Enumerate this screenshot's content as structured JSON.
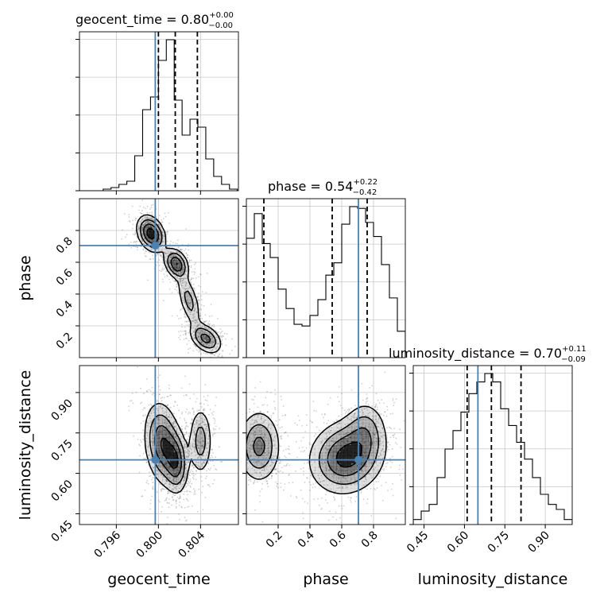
{
  "chart_data": {
    "type": "corner",
    "parameters": [
      {
        "name": "geocent_time",
        "label": "geocent_time",
        "title_prefix": "geocent_time = ",
        "median": "0.80",
        "upper": "+0.00",
        "lower": "−0.00",
        "range": [
          0.7925,
          0.8076
        ],
        "ticks": [
          0.796,
          0.8,
          0.804
        ],
        "tick_labels": [
          "0.796",
          "0.800",
          "0.804"
        ],
        "truth": 0.7997,
        "quantiles": [
          0.8,
          0.8016,
          0.8037
        ],
        "hist": {
          "edges": [
            0.7925,
            0.79325,
            0.794,
            0.79475,
            0.7955,
            0.79625,
            0.797,
            0.79775,
            0.7985,
            0.79925,
            0.8,
            0.80075,
            0.8015,
            0.80225,
            0.803,
            0.80375,
            0.8045,
            0.80525,
            0.806,
            0.80675,
            0.8075
          ],
          "counts": [
            0,
            0,
            0,
            0.01,
            0.02,
            0.04,
            0.06,
            0.22,
            0.51,
            0.59,
            0.82,
            0.95,
            0.57,
            0.35,
            0.45,
            0.4,
            0.2,
            0.09,
            0.04,
            0.01
          ]
        }
      },
      {
        "name": "phase",
        "label": "phase",
        "title_prefix": "phase = ",
        "median": "0.54",
        "upper": "+0.22",
        "lower": "−0.42",
        "range": [
          0.0,
          1.0
        ],
        "ticks": [
          0.2,
          0.4,
          0.6,
          0.8
        ],
        "tick_labels": [
          "0.2",
          "0.4",
          "0.6",
          "0.8"
        ],
        "truth": 0.705,
        "quantiles": [
          0.11,
          0.54,
          0.76
        ],
        "hist": {
          "edges": [
            0,
            0.05,
            0.1,
            0.15,
            0.2,
            0.25,
            0.3,
            0.35,
            0.4,
            0.45,
            0.5,
            0.55,
            0.6,
            0.65,
            0.7,
            0.75,
            0.8,
            0.85,
            0.9,
            0.95,
            1.0
          ],
          "counts": [
            0.68,
            0.82,
            0.65,
            0.57,
            0.39,
            0.28,
            0.19,
            0.18,
            0.24,
            0.33,
            0.47,
            0.54,
            0.76,
            0.86,
            0.85,
            0.77,
            0.69,
            0.53,
            0.34,
            0.15
          ]
        }
      },
      {
        "name": "luminosity_distance",
        "label": "luminosity_distance",
        "title_prefix": "luminosity_distance = ",
        "median": "0.70",
        "upper": "+0.11",
        "lower": "−0.09",
        "range": [
          0.41,
          1.0
        ],
        "ticks": [
          0.45,
          0.6,
          0.75,
          0.9
        ],
        "tick_labels": [
          "0.45",
          "0.60",
          "0.75",
          "0.90"
        ],
        "truth": 0.65,
        "quantiles": [
          0.61,
          0.7,
          0.81
        ],
        "hist": {
          "edges": [
            0.41,
            0.4395,
            0.469,
            0.4985,
            0.528,
            0.5575,
            0.587,
            0.6165,
            0.646,
            0.6755,
            0.705,
            0.7345,
            0.764,
            0.7935,
            0.823,
            0.8525,
            0.882,
            0.9115,
            0.941,
            0.9705,
            1.0
          ],
          "counts": [
            0.03,
            0.08,
            0.12,
            0.28,
            0.45,
            0.56,
            0.67,
            0.78,
            0.85,
            0.9,
            0.85,
            0.69,
            0.59,
            0.49,
            0.39,
            0.28,
            0.18,
            0.12,
            0.09,
            0.03
          ]
        }
      }
    ],
    "contours_2d": [
      {
        "x": "geocent_time",
        "y": "phase",
        "peaks": [
          {
            "x": 0.7993,
            "y": 0.78,
            "sx": 0.0007,
            "sy": 0.06,
            "w": 1.0,
            "rho": -0.3
          },
          {
            "x": 0.8017,
            "y": 0.59,
            "sx": 0.0006,
            "sy": 0.05,
            "w": 0.85,
            "rho": -0.3
          },
          {
            "x": 0.8029,
            "y": 0.36,
            "sx": 0.0006,
            "sy": 0.09,
            "w": 0.45,
            "rho": -0.6
          },
          {
            "x": 0.8045,
            "y": 0.12,
            "sx": 0.0008,
            "sy": 0.05,
            "w": 0.7,
            "rho": -0.4
          }
        ]
      },
      {
        "x": "geocent_time",
        "y": "luminosity_distance",
        "peaks": [
          {
            "x": 0.8004,
            "y": 0.71,
            "sx": 0.0009,
            "sy": 0.08,
            "w": 1.0,
            "rho": -0.2
          },
          {
            "x": 0.8017,
            "y": 0.64,
            "sx": 0.0006,
            "sy": 0.06,
            "w": 0.8,
            "rho": -0.1
          },
          {
            "x": 0.804,
            "y": 0.72,
            "sx": 0.0006,
            "sy": 0.07,
            "w": 0.55,
            "rho": 0.0
          }
        ]
      },
      {
        "x": "phase",
        "y": "luminosity_distance",
        "peaks": [
          {
            "x": 0.08,
            "y": 0.7,
            "sx": 0.07,
            "sy": 0.07,
            "w": 0.7,
            "rho": 0.0
          },
          {
            "x": 0.63,
            "y": 0.66,
            "sx": 0.12,
            "sy": 0.07,
            "w": 1.0,
            "rho": 0.1
          },
          {
            "x": 0.75,
            "y": 0.76,
            "sx": 0.07,
            "sy": 0.06,
            "w": 0.4,
            "rho": 0.0
          }
        ]
      }
    ],
    "truth_color": "#4682b4",
    "grid": true
  }
}
